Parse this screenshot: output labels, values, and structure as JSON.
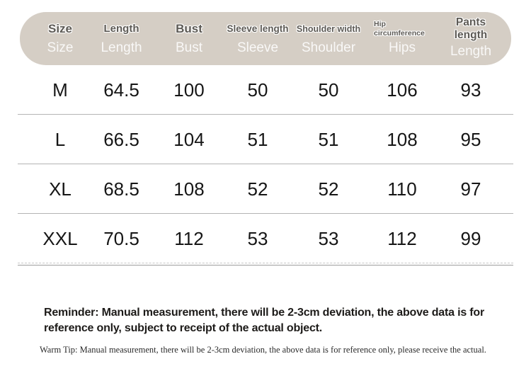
{
  "table": {
    "columns": [
      {
        "top": "Size",
        "bottom": "Size"
      },
      {
        "top": "Length",
        "bottom": "Length"
      },
      {
        "top": "Bust",
        "bottom": "Bust"
      },
      {
        "top": "Sleeve length",
        "bottom": "Sleeve"
      },
      {
        "top": "Shoulder width",
        "bottom": "Shoulder"
      },
      {
        "top": "Hip circumference",
        "bottom": "Hips"
      },
      {
        "top": "Pants length",
        "bottom": "Length"
      }
    ],
    "rows": [
      {
        "size": "M",
        "values": [
          "64.5",
          "100",
          "50",
          "50",
          "106",
          "93"
        ]
      },
      {
        "size": "L",
        "values": [
          "66.5",
          "104",
          "51",
          "51",
          "108",
          "95"
        ]
      },
      {
        "size": "XL",
        "values": [
          "68.5",
          "108",
          "52",
          "52",
          "110",
          "97"
        ]
      },
      {
        "size": "XXL",
        "values": [
          "70.5",
          "112",
          "53",
          "53",
          "112",
          "99"
        ]
      }
    ]
  },
  "notes": {
    "reminder_line1": "Reminder: Manual measurement, there will be 2-3cm deviation, the above data is for",
    "reminder_line2": "reference only, subject to receipt of the actual object.",
    "warm_tip": "Warm Tip: Manual measurement, there will be 2-3cm deviation, the above data is for reference only, please receive the actual."
  },
  "colors": {
    "page_bg": "#ffffff",
    "header_bg": "#d5cec5",
    "header_top_text": "#5d5a55",
    "header_bottom_text": "#f4f0e9",
    "data_text": "#161616",
    "divider": "#b4b4b4"
  }
}
